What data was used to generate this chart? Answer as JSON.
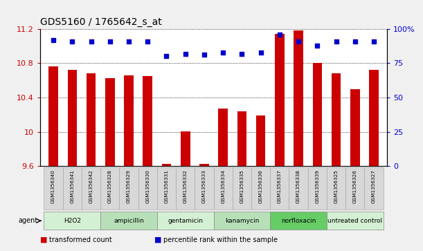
{
  "title": "GDS5160 / 1765642_s_at",
  "samples": [
    "GSM1356340",
    "GSM1356341",
    "GSM1356342",
    "GSM1356328",
    "GSM1356329",
    "GSM1356330",
    "GSM1356331",
    "GSM1356332",
    "GSM1356333",
    "GSM1356334",
    "GSM1356335",
    "GSM1356336",
    "GSM1356337",
    "GSM1356338",
    "GSM1356339",
    "GSM1356325",
    "GSM1356326",
    "GSM1356327"
  ],
  "bar_values": [
    10.76,
    10.72,
    10.68,
    10.63,
    10.66,
    10.65,
    9.63,
    10.01,
    9.63,
    10.27,
    10.24,
    10.19,
    11.14,
    11.18,
    10.8,
    10.68,
    10.5,
    10.72
  ],
  "percentile_values": [
    92,
    91,
    91,
    91,
    91,
    91,
    80,
    82,
    81,
    83,
    82,
    83,
    96,
    91,
    88,
    91,
    91,
    91
  ],
  "agents": [
    {
      "label": "H2O2",
      "start": 0,
      "end": 3,
      "color": "#d4f0d4"
    },
    {
      "label": "ampicillin",
      "start": 3,
      "end": 6,
      "color": "#b8e0b8"
    },
    {
      "label": "gentamicin",
      "start": 6,
      "end": 9,
      "color": "#d4f0d4"
    },
    {
      "label": "kanamycin",
      "start": 9,
      "end": 12,
      "color": "#b8e0b8"
    },
    {
      "label": "norfloxacin",
      "start": 12,
      "end": 15,
      "color": "#66cc66"
    },
    {
      "label": "untreated control",
      "start": 15,
      "end": 18,
      "color": "#d4f0d4"
    }
  ],
  "ymin": 9.6,
  "ymax": 11.2,
  "yticks": [
    9.6,
    10.0,
    10.4,
    10.8,
    11.2
  ],
  "ytick_labels": [
    "9.6",
    "10",
    "10.4",
    "10.8",
    "11.2"
  ],
  "right_yticks": [
    0,
    25,
    50,
    75,
    100
  ],
  "right_ytick_labels": [
    "0",
    "25",
    "50",
    "75",
    "100%"
  ],
  "bar_color": "#cc0000",
  "dot_color": "#0000cc",
  "legend_bar_label": "transformed count",
  "legend_dot_label": "percentile rank within the sample",
  "title_fontsize": 10,
  "axis_label_color_left": "#cc0000",
  "axis_label_color_right": "#0000cc",
  "sample_box_color": "#d8d8d8",
  "sample_box_edge": "#aaaaaa"
}
